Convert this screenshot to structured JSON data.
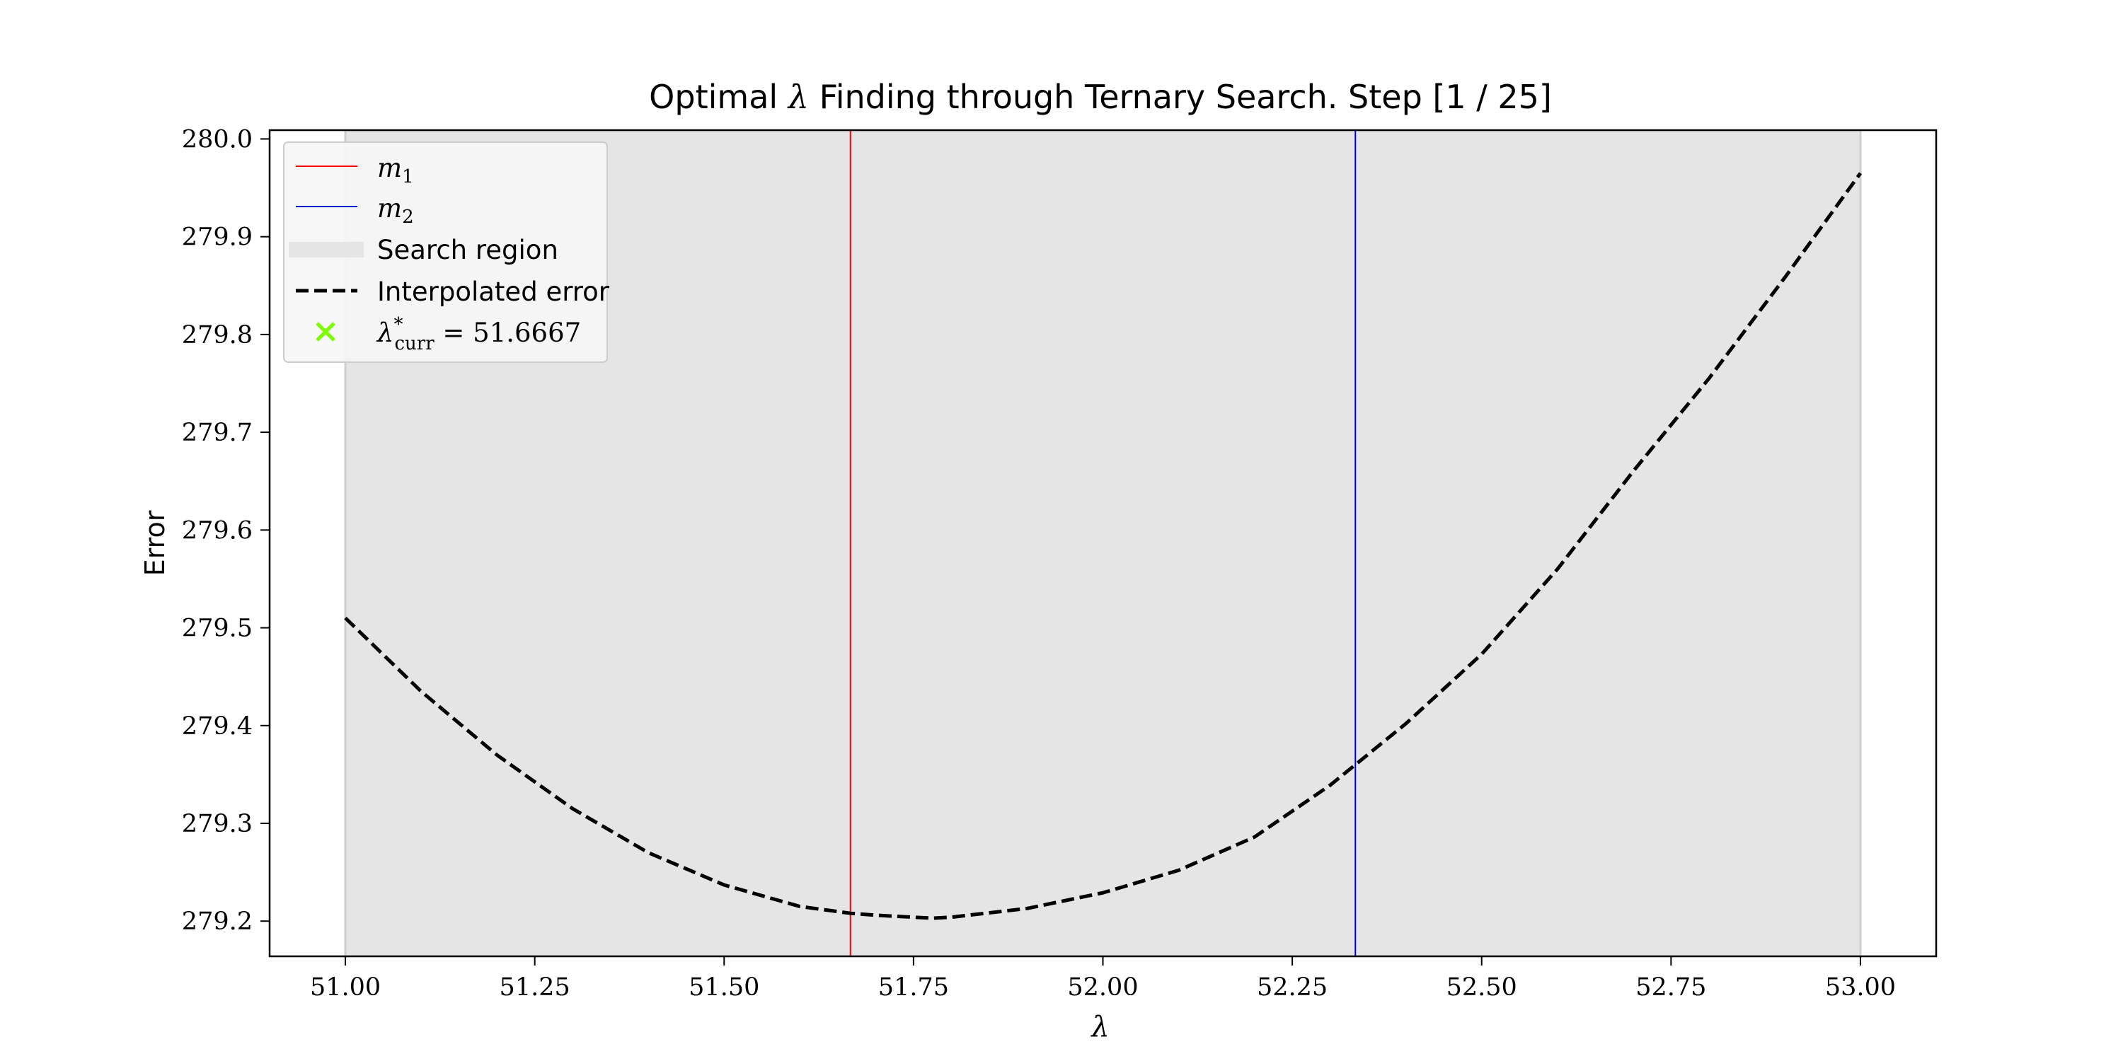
{
  "chart_data": {
    "type": "line",
    "title": {
      "before": "Optimal",
      "symbol": "λ",
      "after": "Finding through Ternary Search. Step [1 / 25]"
    },
    "xlabel": "λ",
    "ylabel": "Error",
    "xlim": [
      50.9,
      53.1
    ],
    "ylim": [
      279.164,
      280.009
    ],
    "xticks": [
      51.0,
      51.25,
      51.5,
      51.75,
      52.0,
      52.25,
      52.5,
      52.75,
      53.0
    ],
    "xtick_labels": [
      "51.00",
      "51.25",
      "51.50",
      "51.75",
      "52.00",
      "52.25",
      "52.50",
      "52.75",
      "53.00"
    ],
    "yticks": [
      279.2,
      279.3,
      279.4,
      279.5,
      279.6,
      279.7,
      279.8,
      279.9,
      280.0
    ],
    "ytick_labels": [
      "279.2",
      "279.3",
      "279.4",
      "279.5",
      "279.6",
      "279.7",
      "279.8",
      "279.9",
      "280.0"
    ],
    "grid": false,
    "legend_position": "top-left",
    "search_region": {
      "x_start": 51.0,
      "x_end": 53.0,
      "color": "#e5e5e5"
    },
    "vlines": [
      {
        "name": "m1",
        "x": 51.6667,
        "color": "#ff0000"
      },
      {
        "name": "m2",
        "x": 52.3333,
        "color": "#0000cc"
      }
    ],
    "series": [
      {
        "name": "Interpolated error",
        "style": "dashed",
        "color": "#000000",
        "x": [
          51.0,
          51.1,
          51.2,
          51.3,
          51.4,
          51.5,
          51.6,
          51.667,
          51.7,
          51.775,
          51.8,
          51.9,
          52.0,
          52.1,
          52.2,
          52.3,
          52.4,
          52.5,
          52.6,
          52.7,
          52.8,
          52.9,
          53.0
        ],
        "y": [
          279.51,
          279.435,
          279.37,
          279.315,
          279.27,
          279.237,
          279.215,
          279.208,
          279.206,
          279.203,
          279.204,
          279.213,
          279.229,
          279.252,
          279.286,
          279.339,
          279.402,
          279.473,
          279.56,
          279.66,
          279.755,
          279.858,
          279.965
        ]
      }
    ],
    "current_best": {
      "x": 51.6667,
      "color": "#7cfc00"
    },
    "legend": [
      {
        "key": "m1",
        "label_base": "m",
        "label_sub": "1",
        "swatch": "line",
        "color": "#ff0000"
      },
      {
        "key": "m2",
        "label_base": "m",
        "label_sub": "2",
        "swatch": "line",
        "color": "#0000cc"
      },
      {
        "key": "region",
        "label": "Search region",
        "swatch": "band",
        "color": "#e5e5e5"
      },
      {
        "key": "error",
        "label": "Interpolated error",
        "swatch": "dashed",
        "color": "#000000"
      },
      {
        "key": "best",
        "label_base": "λ",
        "label_sup": "*",
        "label_sub": "curr",
        "label_rest": " = 51.6667",
        "swatch": "x-marker",
        "color": "#7cfc00"
      }
    ]
  }
}
